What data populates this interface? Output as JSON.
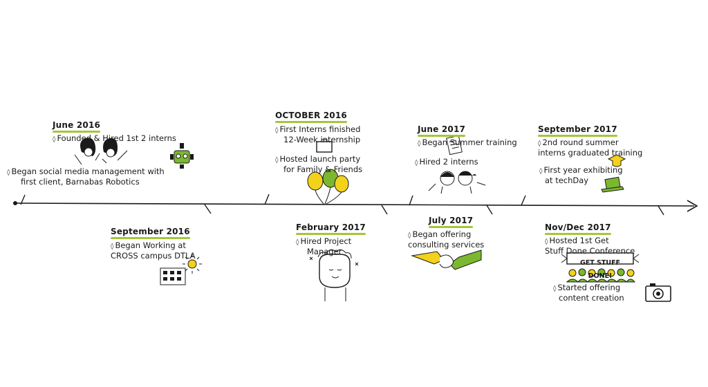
{
  "colors": {
    "accent": "#a4c639",
    "yellow": "#f2d21b",
    "green": "#7cb82f",
    "ink": "#1a1a1a"
  },
  "events": [
    {
      "date": "June 2016",
      "items": [
        "Founded & Hired 1st 2 interns",
        "Began social media management with",
        "first client, Barnabas Robotics"
      ]
    },
    {
      "date": "September 2016",
      "items": [
        "Began Working at",
        "CROSS campus DTLA"
      ]
    },
    {
      "date": "OCTOBER 2016",
      "items": [
        "First Interns finished",
        "12-Week internship",
        "Hosted launch party",
        "for Family & Friends"
      ]
    },
    {
      "date": "February 2017",
      "items": [
        "Hired Project",
        "Manager"
      ]
    },
    {
      "date": "June 2017",
      "items": [
        "Began Summer training",
        "Hired 2 interns"
      ]
    },
    {
      "date": "July 2017",
      "items": [
        "Began offering",
        "consulting services"
      ]
    },
    {
      "date": "September 2017",
      "items": [
        "2nd round summer",
        "interns graduated training",
        "First year exhibiting",
        "at techDay"
      ]
    },
    {
      "date": "Nov/Dec 2017",
      "items": [
        "Hosted 1st Get",
        "Stuff Done Conference",
        "Started offering",
        "content creation"
      ]
    }
  ],
  "banner": "GET STUFF DONE!",
  "icons": [
    "robot-icon",
    "girls-icon",
    "building-icon",
    "sun-icon",
    "briefcase-icon",
    "balloons-icon",
    "person-icon",
    "checklist-icon",
    "kids-icon",
    "handshake-icon",
    "graduation-cap-icon",
    "laptop-icon",
    "audience-icon",
    "camera-icon"
  ]
}
